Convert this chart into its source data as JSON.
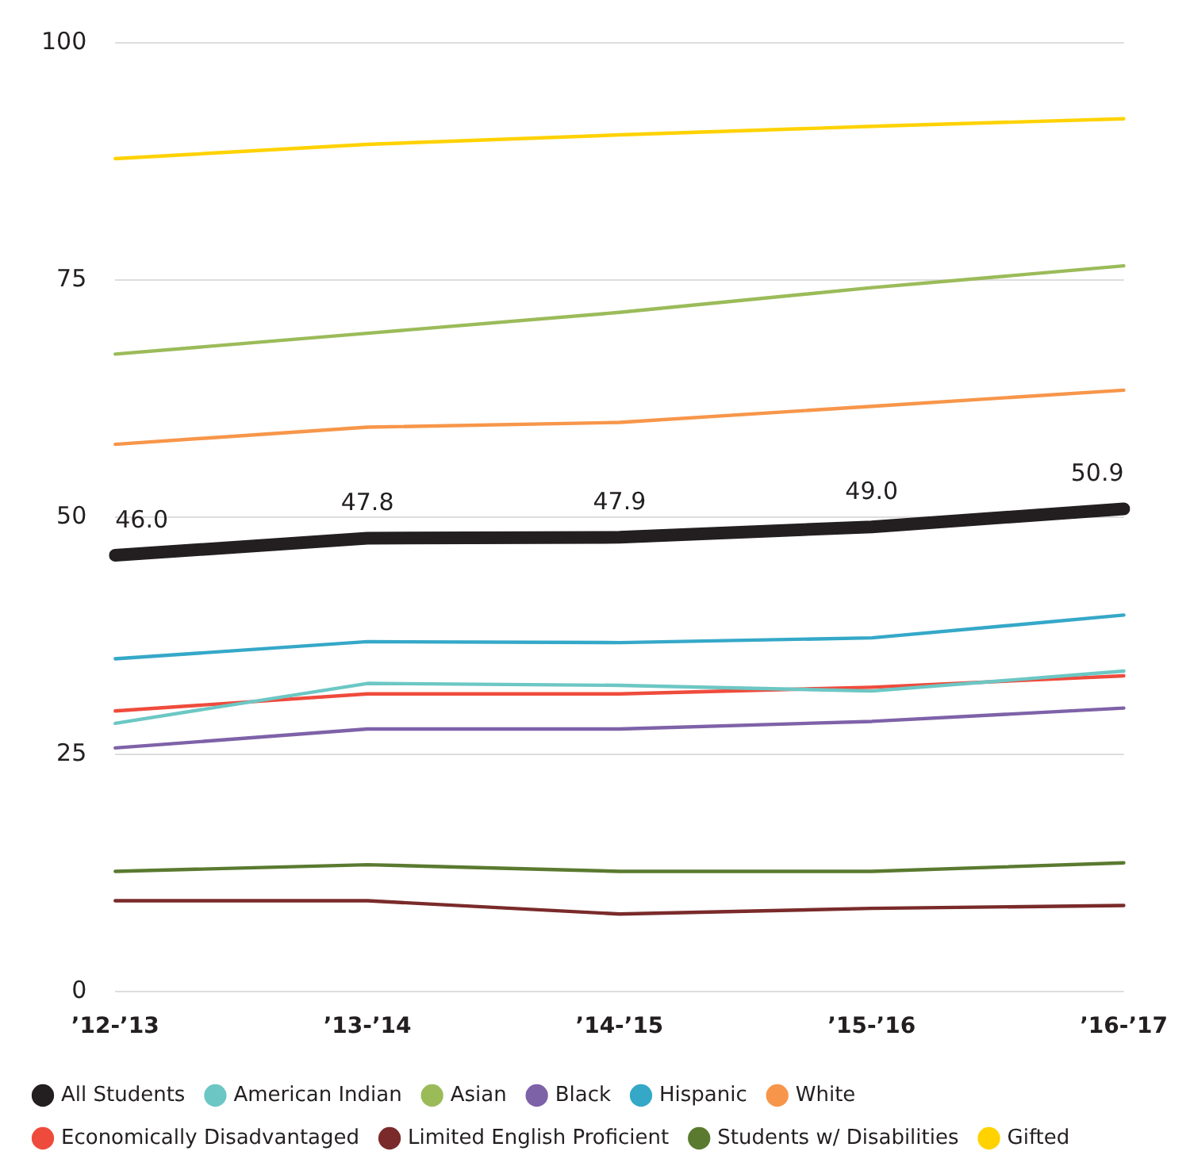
{
  "chart_data": {
    "type": "line",
    "categories": [
      "’12-’13",
      "’13-’14",
      "’14-’15",
      "’15-’16",
      "’16-’17"
    ],
    "ylim": [
      0,
      100
    ],
    "yticks": [
      0,
      25,
      50,
      75,
      100
    ],
    "grid": "y",
    "legend": "bottom",
    "marker": "none",
    "line_style": "solid",
    "series": [
      {
        "name": "All Students",
        "color": "#231f20",
        "values": [
          46.0,
          47.8,
          47.9,
          49.0,
          50.9
        ],
        "value_labels": [
          "46.0",
          "47.8",
          "47.9",
          "49.0",
          "50.9"
        ]
      },
      {
        "name": "American Indian",
        "color": "#6cc7c4",
        "values": [
          28.3,
          32.5,
          32.3,
          31.7,
          33.8
        ]
      },
      {
        "name": "Asian",
        "color": "#9bbb59",
        "values": [
          67.2,
          69.4,
          71.6,
          74.2,
          76.5
        ]
      },
      {
        "name": "Black",
        "color": "#7e62a8",
        "values": [
          25.7,
          27.7,
          27.7,
          28.5,
          29.9
        ]
      },
      {
        "name": "Hispanic",
        "color": "#35a8c8",
        "values": [
          35.1,
          36.9,
          36.8,
          37.3,
          39.7
        ]
      },
      {
        "name": "White",
        "color": "#f7964a",
        "values": [
          57.7,
          59.5,
          60.0,
          61.7,
          63.4
        ]
      },
      {
        "name": "Economically Disadvantaged",
        "color": "#ef4b3c",
        "values": [
          29.6,
          31.4,
          31.4,
          32.1,
          33.3
        ]
      },
      {
        "name": "Limited English Proficient",
        "color": "#7a2a2a",
        "values": [
          9.6,
          9.6,
          8.2,
          8.8,
          9.1
        ]
      },
      {
        "name": "Students w/ Disabilities",
        "color": "#5a7a30",
        "values": [
          12.7,
          13.4,
          12.7,
          12.7,
          13.6
        ]
      },
      {
        "name": "Gifted",
        "color": "#ffd200",
        "values": [
          87.8,
          89.3,
          90.3,
          91.2,
          92.0
        ]
      }
    ]
  }
}
